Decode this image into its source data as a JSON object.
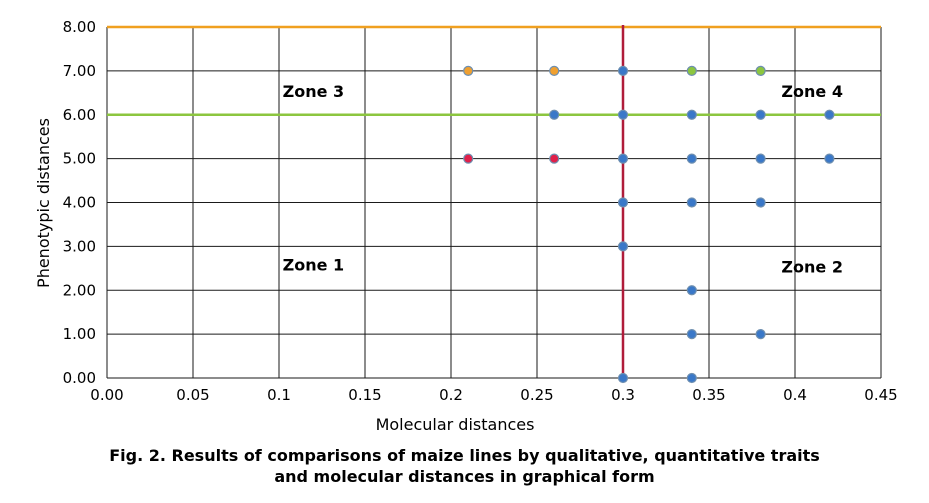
{
  "caption": {
    "line1": "Fig. 2. Results of comparisons of maize lines by qualitative, quantitative traits",
    "line2": "and molecular distances in graphical form"
  },
  "chart_data": {
    "type": "scatter",
    "xlabel": "Molecular distances",
    "ylabel": "Phenotypic distances",
    "xlim": [
      0,
      0.45
    ],
    "ylim": [
      0,
      8
    ],
    "x_ticks": [
      "0.00",
      "0.05",
      "0.1",
      "0.15",
      "0.2",
      "0.25",
      "0.3",
      "0.35",
      "0.4",
      "0.45"
    ],
    "x_tick_values": [
      0,
      0.05,
      0.1,
      0.15,
      0.2,
      0.25,
      0.3,
      0.35,
      0.4,
      0.45
    ],
    "y_ticks": [
      "0.00",
      "1.00",
      "2.00",
      "3.00",
      "4.00",
      "5.00",
      "6.00",
      "7.00",
      "8.00"
    ],
    "y_tick_values": [
      0,
      1,
      2,
      3,
      4,
      5,
      6,
      7,
      8
    ],
    "grid": true,
    "reference_lines": [
      {
        "orientation": "horizontal",
        "value": 8,
        "color": "#f0a020"
      },
      {
        "orientation": "horizontal",
        "value": 6,
        "color": "#8cc63f"
      },
      {
        "orientation": "vertical",
        "value": 0.3,
        "color": "#b01c3a"
      }
    ],
    "zones": [
      {
        "label": "Zone 1",
        "x": 0.12,
        "y": 2.45
      },
      {
        "label": "Zone 2",
        "x": 0.41,
        "y": 2.4
      },
      {
        "label": "Zone 3",
        "x": 0.12,
        "y": 6.4
      },
      {
        "label": "Zone 4",
        "x": 0.41,
        "y": 6.4
      }
    ],
    "points": [
      {
        "x": 0.21,
        "y": 7,
        "color": "#f0a030"
      },
      {
        "x": 0.26,
        "y": 7,
        "color": "#f0a030"
      },
      {
        "x": 0.3,
        "y": 7,
        "color": "#3a78c8"
      },
      {
        "x": 0.34,
        "y": 7,
        "color": "#8cc63f"
      },
      {
        "x": 0.38,
        "y": 7,
        "color": "#8cc63f"
      },
      {
        "x": 0.26,
        "y": 6,
        "color": "#3a78c8"
      },
      {
        "x": 0.3,
        "y": 6,
        "color": "#3a78c8"
      },
      {
        "x": 0.34,
        "y": 6,
        "color": "#3a78c8"
      },
      {
        "x": 0.38,
        "y": 6,
        "color": "#3a78c8"
      },
      {
        "x": 0.42,
        "y": 6,
        "color": "#3a78c8"
      },
      {
        "x": 0.21,
        "y": 5,
        "color": "#e0204a"
      },
      {
        "x": 0.26,
        "y": 5,
        "color": "#e0204a"
      },
      {
        "x": 0.3,
        "y": 5,
        "color": "#3a78c8"
      },
      {
        "x": 0.34,
        "y": 5,
        "color": "#3a78c8"
      },
      {
        "x": 0.38,
        "y": 5,
        "color": "#3a78c8"
      },
      {
        "x": 0.42,
        "y": 5,
        "color": "#3a78c8"
      },
      {
        "x": 0.3,
        "y": 4,
        "color": "#3a78c8"
      },
      {
        "x": 0.34,
        "y": 4,
        "color": "#3a78c8"
      },
      {
        "x": 0.38,
        "y": 4,
        "color": "#3a78c8"
      },
      {
        "x": 0.3,
        "y": 3,
        "color": "#3a78c8"
      },
      {
        "x": 0.34,
        "y": 2,
        "color": "#3a78c8"
      },
      {
        "x": 0.34,
        "y": 1,
        "color": "#3a78c8"
      },
      {
        "x": 0.38,
        "y": 1,
        "color": "#3a78c8"
      },
      {
        "x": 0.3,
        "y": 0,
        "color": "#3a78c8"
      },
      {
        "x": 0.34,
        "y": 0,
        "color": "#3a78c8"
      }
    ],
    "colors": {
      "grid": "#1a1a1a",
      "point_outline": "#6e8fb0"
    }
  }
}
